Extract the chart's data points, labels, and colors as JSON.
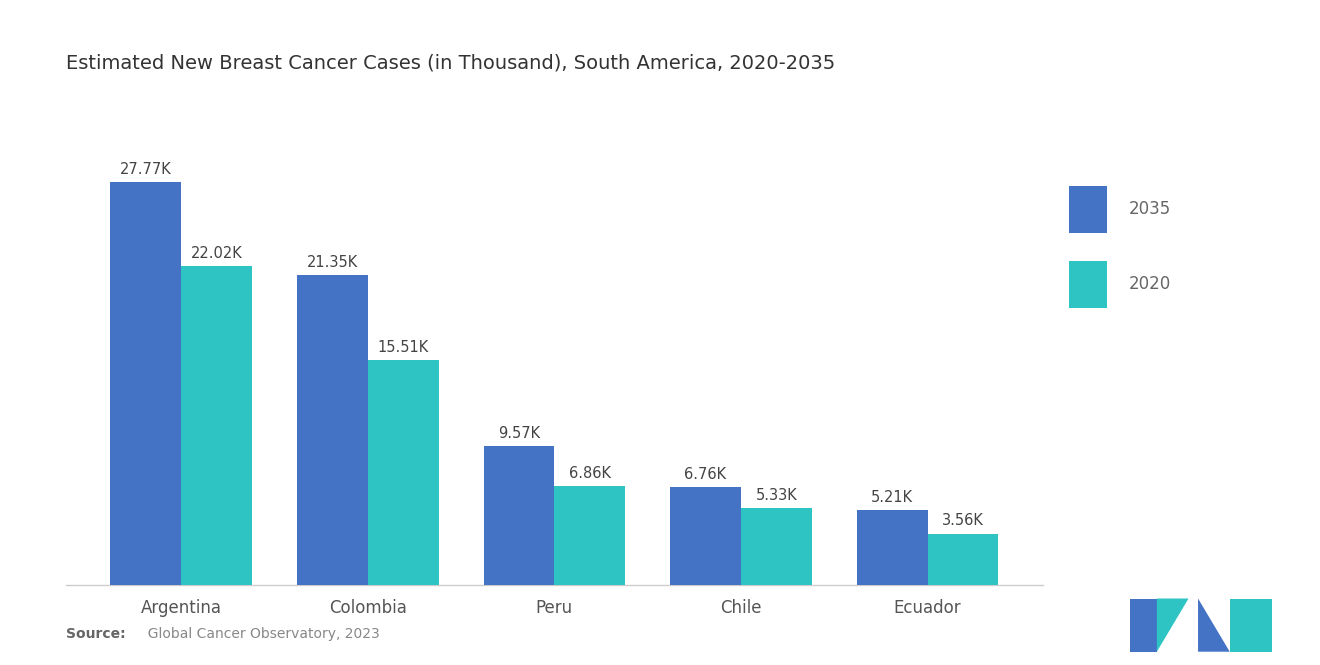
{
  "title": "Estimated New Breast Cancer Cases (in Thousand), South America, 2020-2035",
  "categories": [
    "Argentina",
    "Colombia",
    "Peru",
    "Chile",
    "Ecuador"
  ],
  "values_2035": [
    27.77,
    21.35,
    9.57,
    6.76,
    5.21
  ],
  "values_2020": [
    22.02,
    15.51,
    6.86,
    5.33,
    3.56
  ],
  "labels_2035": [
    "27.77K",
    "21.35K",
    "9.57K",
    "6.76K",
    "5.21K"
  ],
  "labels_2020": [
    "22.02K",
    "15.51K",
    "6.86K",
    "5.33K",
    "3.56K"
  ],
  "color_2035": "#4472C4",
  "color_2020": "#2EC4C4",
  "bar_width": 0.38,
  "ylim": [
    0,
    33
  ],
  "source_bold": "Source:",
  "source_rest": "  Global Cancer Observatory, 2023",
  "legend_labels": [
    "2035",
    "2020"
  ],
  "background_color": "#FFFFFF",
  "title_fontsize": 14,
  "label_fontsize": 10.5,
  "tick_fontsize": 12,
  "source_fontsize": 10
}
